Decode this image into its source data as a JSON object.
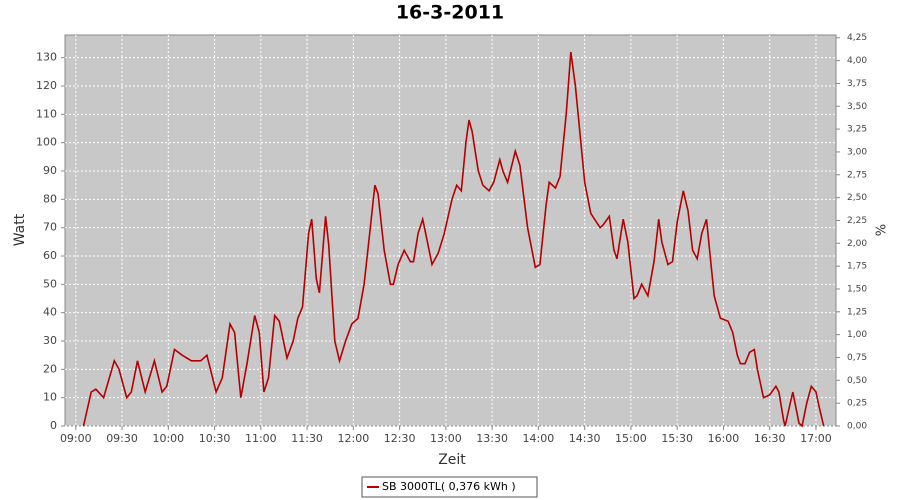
{
  "chart_data": {
    "type": "line",
    "title": "16-3-2011",
    "x_label": "Zeit",
    "y_label": "Watt",
    "y2_label": "%",
    "x": [
      "09:05",
      "09:10",
      "09:13",
      "09:18",
      "09:25",
      "09:28",
      "09:33",
      "09:36",
      "09:40",
      "09:45",
      "09:51",
      "09:56",
      "09:59",
      "10:04",
      "10:09",
      "10:15",
      "10:21",
      "10:25",
      "10:31",
      "10:35",
      "10:40",
      "10:43",
      "10:47",
      "10:51",
      "10:56",
      "10:59",
      "11:02",
      "11:05",
      "11:09",
      "11:12",
      "11:17",
      "11:21",
      "11:24",
      "11:27",
      "11:31",
      "11:33",
      "11:36",
      "11:38",
      "11:42",
      "11:44",
      "11:48",
      "11:51",
      "11:55",
      "11:59",
      "12:03",
      "12:07",
      "12:11",
      "12:14",
      "12:16",
      "12:20",
      "12:24",
      "12:26",
      "12:29",
      "12:33",
      "12:37",
      "12:39",
      "12:42",
      "12:45",
      "12:48",
      "12:51",
      "12:55",
      "12:59",
      "13:04",
      "13:07",
      "13:10",
      "13:13",
      "13:15",
      "13:17",
      "13:21",
      "13:24",
      "13:28",
      "13:31",
      "13:35",
      "13:37",
      "13:40",
      "13:45",
      "13:48",
      "13:53",
      "13:58",
      "14:01",
      "14:05",
      "14:07",
      "14:11",
      "14:14",
      "14:18",
      "14:21",
      "14:24",
      "14:30",
      "14:34",
      "14:40",
      "14:42",
      "14:46",
      "14:49",
      "14:51",
      "14:55",
      "14:58",
      "15:02",
      "15:04",
      "15:07",
      "15:11",
      "15:15",
      "15:18",
      "15:20",
      "15:24",
      "15:27",
      "15:30",
      "15:34",
      "15:37",
      "15:40",
      "15:43",
      "15:46",
      "15:49",
      "15:51",
      "15:54",
      "15:58",
      "16:03",
      "16:06",
      "16:09",
      "16:11",
      "16:14",
      "16:17",
      "16:20",
      "16:22",
      "16:26",
      "16:30",
      "16:34",
      "16:36",
      "16:39",
      "16:40",
      "16:45",
      "16:49",
      "16:51",
      "16:54",
      "16:57",
      "17:00",
      "17:02",
      "17:05"
    ],
    "series": [
      {
        "name": "SB 3000TL( 0,376 kWh )",
        "color": "#b40000",
        "values": [
          0,
          12,
          13,
          10,
          23,
          20,
          10,
          12,
          23,
          12,
          23,
          12,
          14,
          27,
          25,
          23,
          23,
          25,
          12,
          17,
          36,
          33,
          10,
          22,
          39,
          33,
          12,
          17,
          39,
          37,
          24,
          30,
          38,
          42,
          68,
          73,
          52,
          47,
          74,
          64,
          30,
          23,
          30,
          36,
          38,
          50,
          70,
          85,
          82,
          62,
          50,
          50,
          57,
          62,
          58,
          58,
          68,
          73,
          65,
          57,
          61,
          68,
          80,
          85,
          83,
          100,
          108,
          104,
          90,
          85,
          83,
          86,
          94,
          90,
          86,
          97,
          92,
          70,
          56,
          57,
          78,
          86,
          84,
          88,
          110,
          132,
          120,
          86,
          75,
          70,
          71,
          74,
          62,
          59,
          73,
          65,
          45,
          46,
          50,
          46,
          58,
          73,
          65,
          57,
          58,
          72,
          83,
          76,
          62,
          59,
          68,
          73,
          62,
          46,
          38,
          37,
          33,
          25,
          22,
          22,
          26,
          27,
          20,
          10,
          11,
          14,
          12,
          2,
          0,
          12,
          1,
          0,
          8,
          14,
          12,
          7,
          0
        ]
      }
    ],
    "xlim": [
      "08:53",
      "17:13"
    ],
    "xticks": [
      "09:00",
      "09:30",
      "10:00",
      "10:30",
      "11:00",
      "11:30",
      "12:00",
      "12:30",
      "13:00",
      "13:30",
      "14:00",
      "14:30",
      "15:00",
      "15:30",
      "16:00",
      "16:30",
      "17:00"
    ],
    "ylim": [
      0,
      138
    ],
    "yticks": [
      0,
      10,
      20,
      30,
      40,
      50,
      60,
      70,
      80,
      90,
      100,
      110,
      120,
      130
    ],
    "y2lim": [
      0,
      4.28
    ],
    "y2ticks": [
      {
        "value": 0,
        "label": "0,00"
      },
      {
        "value": 0.25,
        "label": "0,25"
      },
      {
        "value": 0.5,
        "label": "0,50"
      },
      {
        "value": 0.75,
        "label": "0,75"
      },
      {
        "value": 1,
        "label": "1,00"
      },
      {
        "value": 1.25,
        "label": "1,25"
      },
      {
        "value": 1.5,
        "label": "1,50"
      },
      {
        "value": 1.75,
        "label": "1,75"
      },
      {
        "value": 2,
        "label": "2,00"
      },
      {
        "value": 2.25,
        "label": "2,25"
      },
      {
        "value": 2.5,
        "label": "2,50"
      },
      {
        "value": 2.75,
        "label": "2,75"
      },
      {
        "value": 3,
        "label": "3,00"
      },
      {
        "value": 3.25,
        "label": "3,25"
      },
      {
        "value": 3.5,
        "label": "3,50"
      },
      {
        "value": 3.75,
        "label": "3,75"
      },
      {
        "value": 4,
        "label": "4,00"
      },
      {
        "value": 4.25,
        "label": "4,25"
      }
    ],
    "grid": true,
    "plot_background": "#c8c8c8"
  }
}
